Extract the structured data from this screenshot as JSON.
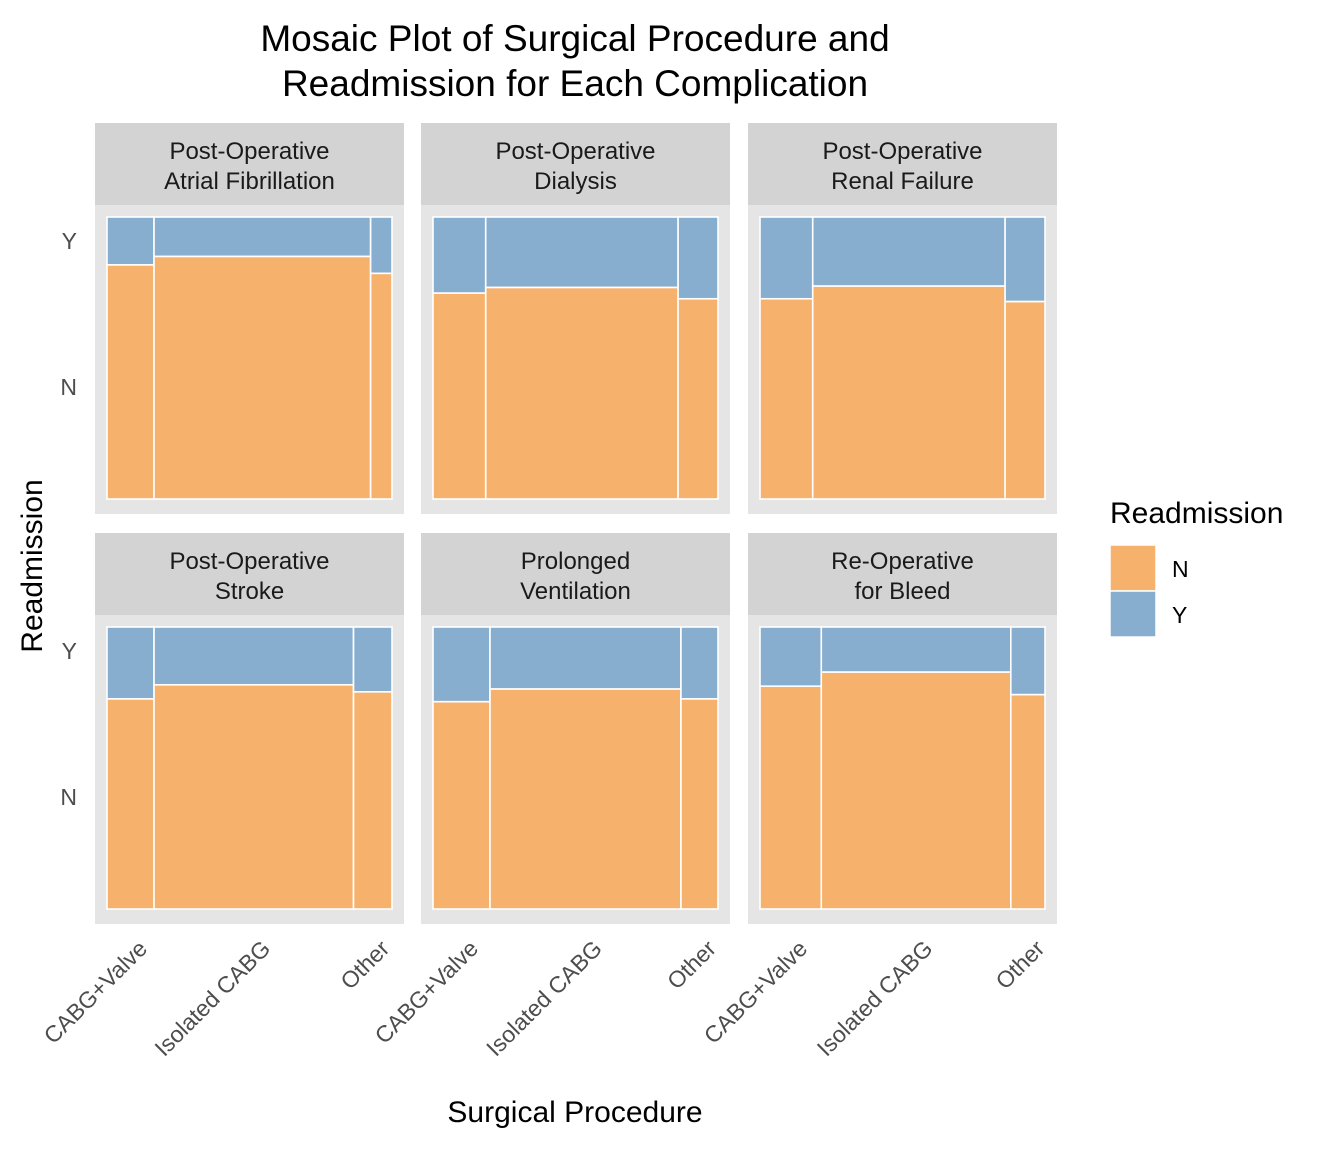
{
  "chart_data": {
    "type": "mosaic",
    "title": [
      "Mosaic Plot of Surgical Procedure and",
      "Readmission for Each Complication"
    ],
    "xlabel": "Surgical Procedure",
    "ylabel": "Readmission",
    "categories": [
      "CABG+Valve",
      "Isolated CABG",
      "Other"
    ],
    "y_levels": [
      "N",
      "Y"
    ],
    "legend": {
      "title": "Readmission",
      "position": "right",
      "items": [
        {
          "label": "N",
          "color": "#F6B16C"
        },
        {
          "label": "Y",
          "color": "#88AECF"
        }
      ]
    },
    "colors": {
      "N": "#F6B16C",
      "Y": "#88AECF",
      "panel_bg": "#E5E5E5",
      "strip_bg": "#D3D3D3"
    },
    "panels": [
      {
        "name": [
          "Post-Operative",
          "Atrial Fibrillation"
        ],
        "widths": [
          0.165,
          0.76,
          0.075
        ],
        "y_share": [
          0.17,
          0.14,
          0.2
        ]
      },
      {
        "name": [
          "Post-Operative",
          "Dialysis"
        ],
        "widths": [
          0.185,
          0.675,
          0.14
        ],
        "y_share": [
          0.27,
          0.25,
          0.29
        ]
      },
      {
        "name": [
          "Post-Operative",
          "Renal Failure"
        ],
        "widths": [
          0.185,
          0.675,
          0.14
        ],
        "y_share": [
          0.29,
          0.245,
          0.3
        ]
      },
      {
        "name": [
          "Post-Operative",
          "Stroke"
        ],
        "widths": [
          0.165,
          0.7,
          0.135
        ],
        "y_share": [
          0.255,
          0.205,
          0.23
        ]
      },
      {
        "name": [
          "Prolonged",
          "Ventilation"
        ],
        "widths": [
          0.2,
          0.67,
          0.13
        ],
        "y_share": [
          0.265,
          0.22,
          0.255
        ]
      },
      {
        "name": [
          "Re-Operative",
          "for Bleed"
        ],
        "widths": [
          0.215,
          0.665,
          0.12
        ],
        "y_share": [
          0.21,
          0.16,
          0.24
        ]
      }
    ]
  }
}
